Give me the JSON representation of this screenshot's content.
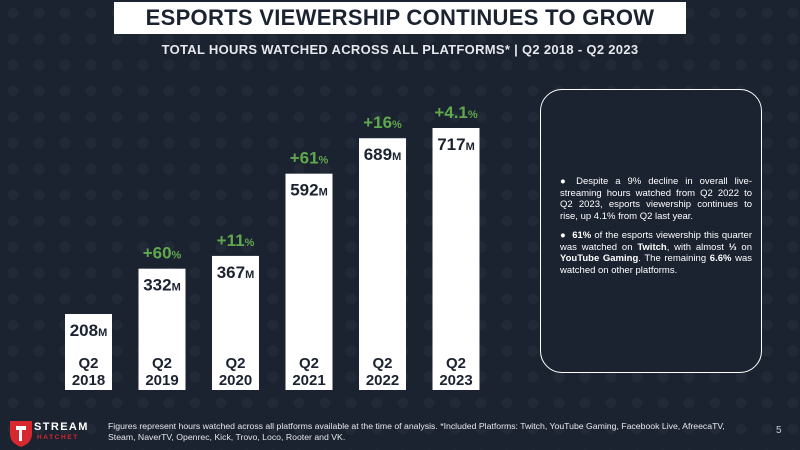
{
  "header": {
    "title": "ESPORTS VIEWERSHIP CONTINUES TO GROW",
    "subtitle": "TOTAL HOURS WATCHED ACROSS ALL PLATFORMS* | Q2 2018 - Q2 2023"
  },
  "chart_data": {
    "type": "bar",
    "title": "Total Hours Watched Across All Platforms",
    "categories": [
      {
        "q": "Q2",
        "year": "2018"
      },
      {
        "q": "Q2",
        "year": "2019"
      },
      {
        "q": "Q2",
        "year": "2020"
      },
      {
        "q": "Q2",
        "year": "2021"
      },
      {
        "q": "Q2",
        "year": "2022"
      },
      {
        "q": "Q2",
        "year": "2023"
      }
    ],
    "values": [
      208,
      332,
      367,
      592,
      689,
      717
    ],
    "value_labels": [
      "208",
      "332",
      "367",
      "592",
      "689",
      "717"
    ],
    "unit": "M",
    "growth_labels": [
      "",
      "+60",
      "+11",
      "+61",
      "+16",
      "+4.1"
    ],
    "growth_unit": "%",
    "ylim": [
      0,
      717
    ],
    "colors": {
      "bar": "#ffffff",
      "growth": "#5fa84e",
      "text": "#1b2230"
    }
  },
  "notes": {
    "bullet": "●",
    "item1": "Despite a 9% decline in overall live-streaming hours watched from Q2 2022 to Q2 2023, esports viewership continues to rise, up 4.1% from Q2 last year.",
    "item2": {
      "p1": "61%",
      "p2": " of the esports viewership this quarter was watched on ",
      "p3": "Twitch",
      "p4": ", with almost ",
      "p5": "⅓",
      "p6": " on ",
      "p7": "YouTube Gaming",
      "p8": ". The remaining ",
      "p9": "6.6%",
      "p10": " was watched on other platforms."
    }
  },
  "footer": {
    "text": "Figures represent hours watched across all platforms available at the time of analysis. *Included Platforms: Twitch, YouTube Gaming, Facebook Live, AfreecaTV, Steam, NaverTV, Openrec, Kick, Trovo, Loco, Rooter and VK.",
    "page_number": "5"
  },
  "logo": {
    "line1": "STREAM",
    "line2": "HATCHET",
    "icon": "stream-hatchet-shield-icon"
  }
}
